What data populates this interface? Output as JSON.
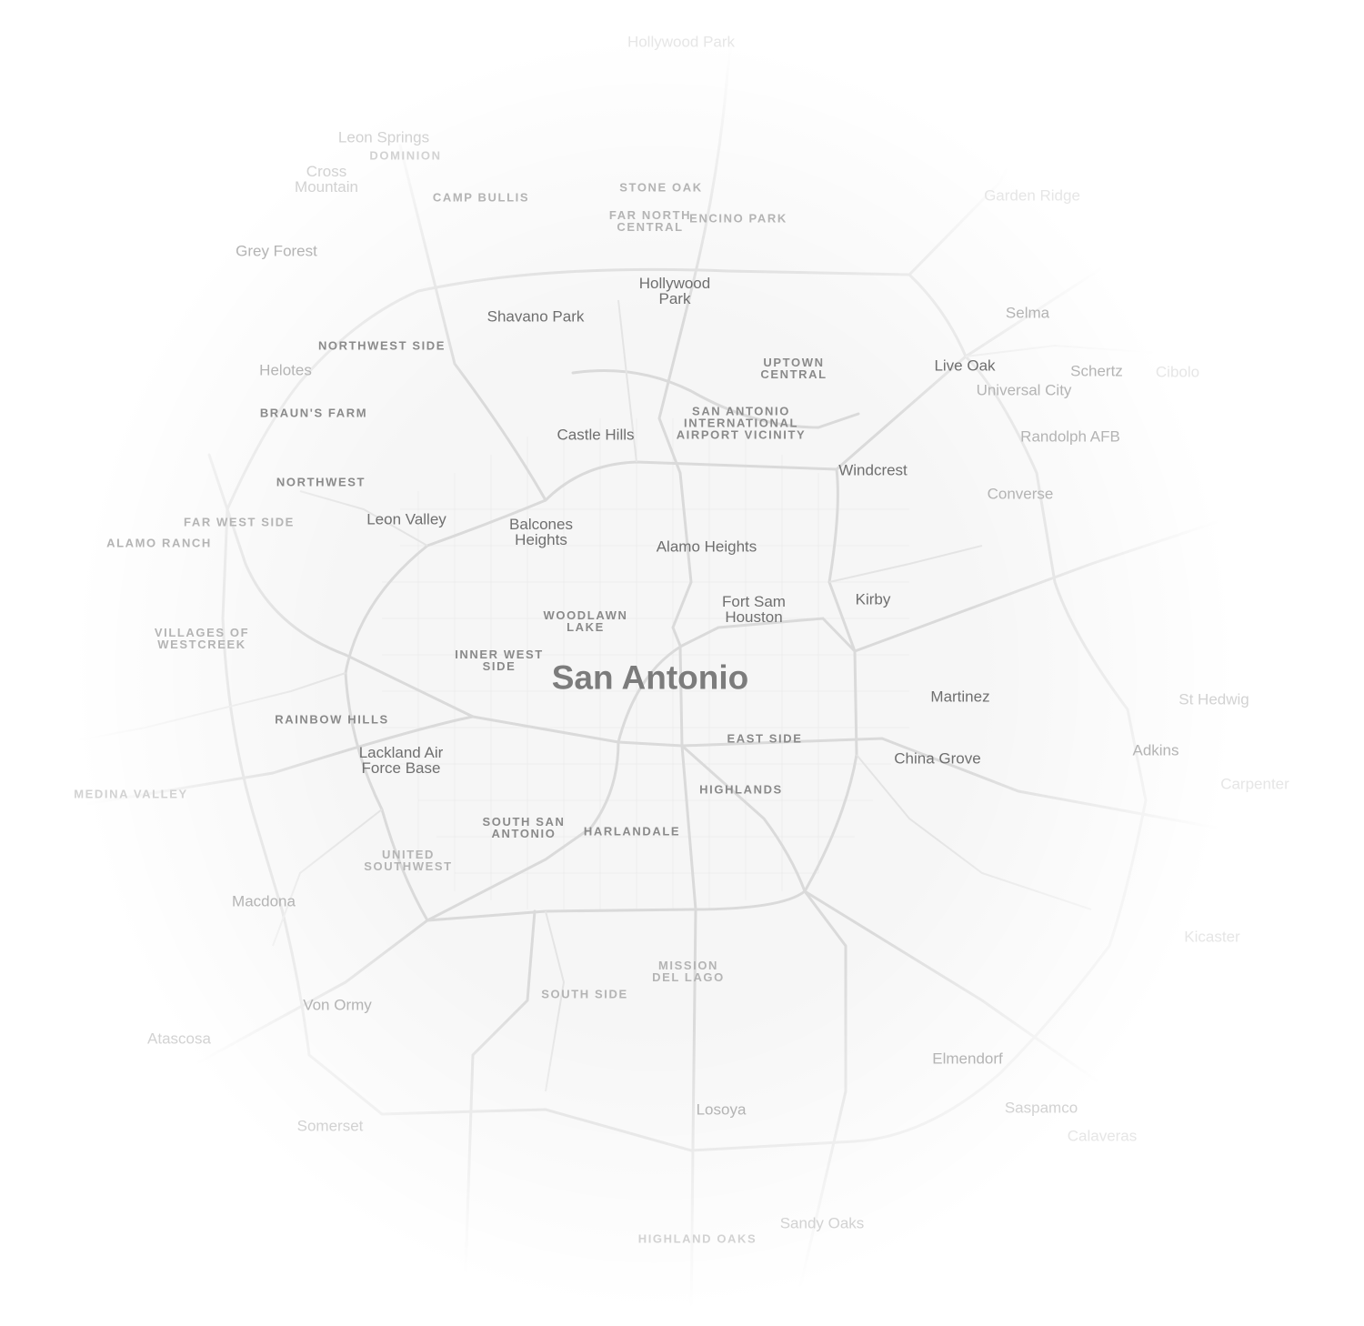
{
  "map": {
    "city": "San Antonio",
    "colors": {
      "road": "#dcdcdc",
      "street": "#ececec",
      "label": "#6f6f6f",
      "background": "#f3f3f3"
    },
    "towns": [
      "Hollywood Park",
      "Leon Springs",
      "Cross Mountain",
      "Grey Forest",
      "Garden Ridge",
      "Hollywood Park",
      "Shavano Park",
      "Selma",
      "Helotes",
      "Live Oak",
      "Schertz",
      "Cibolo",
      "Universal City",
      "Castle Hills",
      "Randolph AFB",
      "Windcrest",
      "Converse",
      "Leon Valley",
      "Balcones Heights",
      "Alamo Heights",
      "Fort Sam Houston",
      "Kirby",
      "Martinez",
      "St Hedwig",
      "Adkins",
      "China Grove",
      "Lackland Air Force Base",
      "Macdona",
      "Von Ormy",
      "Atascosa",
      "Elmendorf",
      "Saspamco",
      "Losoya",
      "Somerset",
      "Sandy Oaks",
      "Kicaster",
      "Calaveras",
      "Carpenter"
    ],
    "neighborhoods": [
      "DOMINION",
      "CAMP BULLIS",
      "STONE OAK",
      "FAR NORTH CENTRAL",
      "ENCINO PARK",
      "NORTHWEST SIDE",
      "UPTOWN CENTRAL",
      "BRAUN'S FARM",
      "SAN ANTONIO INTERNATIONAL AIRPORT VICINITY",
      "NORTHWEST",
      "FAR WEST SIDE",
      "ALAMO RANCH",
      "VILLAGES OF WESTCREEK",
      "WOODLAWN LAKE",
      "INNER WEST SIDE",
      "RAINBOW HILLS",
      "EAST SIDE",
      "MEDINA VALLEY",
      "HIGHLANDS",
      "SOUTH SAN ANTONIO",
      "HARLANDALE",
      "UNITED SOUTHWEST",
      "MISSION DEL LAGO",
      "SOUTH SIDE",
      "HIGHLAND OAKS"
    ]
  }
}
